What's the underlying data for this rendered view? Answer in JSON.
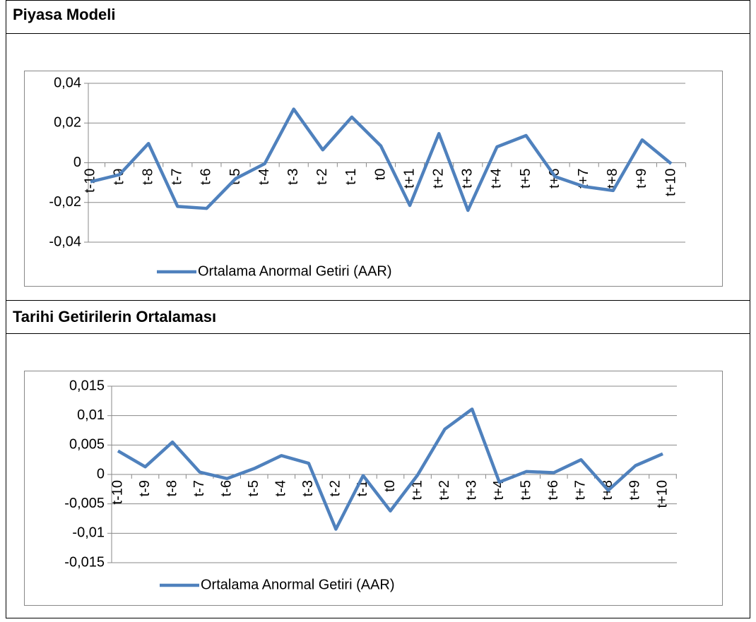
{
  "chart_data": [
    {
      "type": "line",
      "title": "Piyasa Modeli",
      "categories": [
        "t-10",
        "t-9",
        "t-8",
        "t-7",
        "t-6",
        "t-5",
        "t-4",
        "t-3",
        "t-2",
        "t-1",
        "t0",
        "t+1",
        "t+2",
        "t+3",
        "t+4",
        "t+5",
        "t+6",
        "t+7",
        "t+8",
        "t+9",
        "t+10"
      ],
      "series": [
        {
          "name": "Ortalama Anormal Getiri (AAR)",
          "color": "#4f81bd",
          "values": [
            -0.0096,
            -0.006,
            0.0097,
            -0.022,
            -0.023,
            -0.008,
            -0.0005,
            0.027,
            0.0065,
            0.023,
            0.0085,
            -0.0215,
            0.0147,
            -0.024,
            0.008,
            0.0137,
            -0.007,
            -0.012,
            -0.014,
            0.0115,
            -0.0005
          ]
        }
      ],
      "ylim": [
        -0.04,
        0.04
      ],
      "yticks": [
        {
          "value": 0.04,
          "label": "0,04"
        },
        {
          "value": 0.02,
          "label": "0,02"
        },
        0,
        {
          "value": -0.02,
          "label": "-0,02"
        },
        {
          "value": -0.04,
          "label": "-0,04"
        }
      ],
      "grid": true
    },
    {
      "type": "line",
      "title": "Tarihi Getirilerin Ortalaması",
      "categories": [
        "t-10",
        "t-9",
        "t-8",
        "t-7",
        "t-6",
        "t-5",
        "t-4",
        "t-3",
        "t-2",
        "t-1",
        "t0",
        "t+1",
        "t+2",
        "t+3",
        "t+4",
        "t+5",
        "t+6",
        "t+7",
        "t+8",
        "t+9",
        "t+10"
      ],
      "series": [
        {
          "name": "Ortalama Anormal Getiri (AAR)",
          "color": "#4f81bd",
          "values": [
            0.004,
            0.0013,
            0.0055,
            0.0004,
            -0.0007,
            0.001,
            0.0032,
            0.0019,
            -0.0093,
            -0.0002,
            -0.0062,
            -0.0001,
            0.0077,
            0.0111,
            -0.0013,
            0.0005,
            0.0003,
            0.0025,
            -0.0027,
            0.0015,
            0.0035
          ]
        }
      ],
      "ylim": [
        -0.015,
        0.015
      ],
      "yticks": [
        {
          "value": 0.015,
          "label": "0,015"
        },
        {
          "value": 0.01,
          "label": "0,01"
        },
        {
          "value": 0.005,
          "label": "0,005"
        },
        0,
        {
          "value": -0.005,
          "label": "-0,005"
        },
        {
          "value": -0.01,
          "label": "-0,01"
        },
        {
          "value": -0.015,
          "label": "-0,015"
        }
      ],
      "grid": true
    }
  ]
}
